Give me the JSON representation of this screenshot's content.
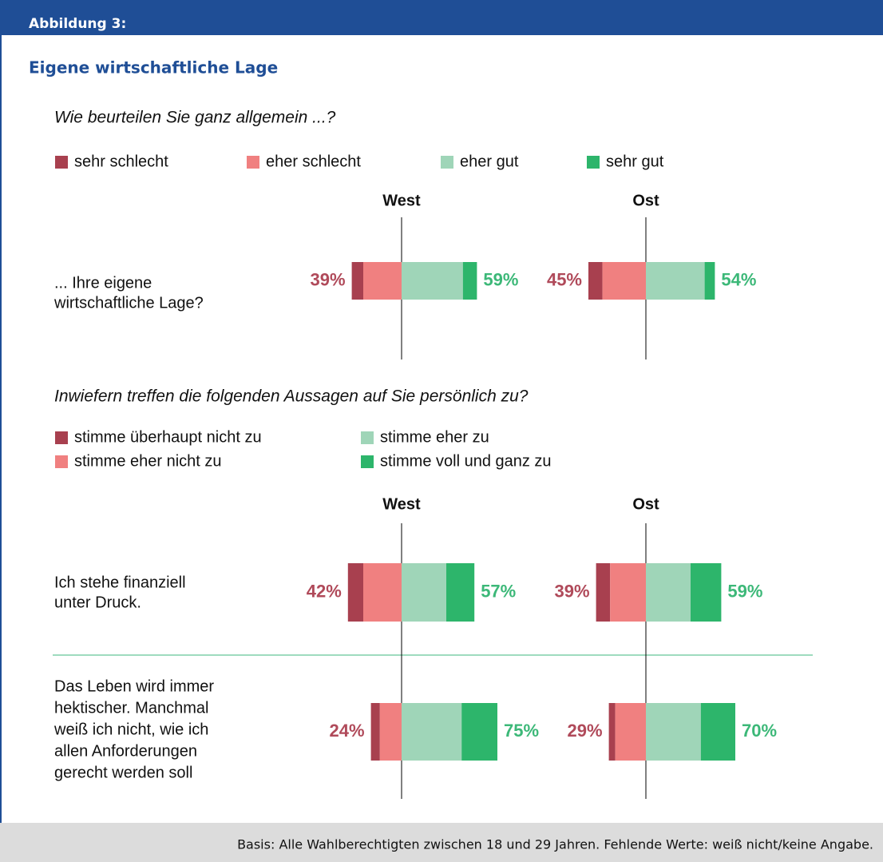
{
  "figure_label": "Abbildung 3:",
  "title": "Eigene wirtschaftliche Lage",
  "sections": [
    {
      "question": "Wie beurteilen Sie ganz allgemein ...?",
      "legend": [
        {
          "label": "sehr schlecht",
          "color": "#a8404f"
        },
        {
          "label": "eher schlecht",
          "color": "#f08080"
        },
        {
          "label": "eher gut",
          "color": "#9fd5b8"
        },
        {
          "label": "sehr gut",
          "color": "#2db56b"
        }
      ],
      "groups": [
        "West",
        "Ost"
      ],
      "rows": [
        {
          "label": [
            "... Ihre eigene",
            "wirtschaftliche Lage?"
          ],
          "bars": [
            {
              "segments": [
                9,
                30,
                48,
                11
              ],
              "neg_label": "39%",
              "pos_label": "59%"
            },
            {
              "segments": [
                11,
                34,
                46,
                8
              ],
              "neg_label": "45%",
              "pos_label": "54%"
            }
          ]
        }
      ]
    },
    {
      "question": "Inwiefern treffen die folgenden Aussagen auf Sie persönlich zu?",
      "legend": [
        {
          "label": "stimme überhaupt nicht zu",
          "color": "#a8404f"
        },
        {
          "label": "stimme eher nicht zu",
          "color": "#f08080"
        },
        {
          "label": "stimme eher zu",
          "color": "#9fd5b8"
        },
        {
          "label": "stimme voll und ganz zu",
          "color": "#2db56b"
        }
      ],
      "groups": [
        "West",
        "Ost"
      ],
      "rows": [
        {
          "label": [
            "Ich stehe finanziell",
            "unter Druck."
          ],
          "bars": [
            {
              "segments": [
                12,
                30,
                35,
                22
              ],
              "neg_label": "42%",
              "pos_label": "57%"
            },
            {
              "segments": [
                11,
                28,
                35,
                24
              ],
              "neg_label": "39%",
              "pos_label": "59%"
            }
          ]
        },
        {
          "label": [
            "Das Leben wird immer",
            "hektischer. Manchmal",
            "weiß ich nicht, wie ich",
            "allen Anforderungen",
            "gerecht werden soll"
          ],
          "bars": [
            {
              "segments": [
                7,
                17,
                47,
                28
              ],
              "neg_label": "24%",
              "pos_label": "75%"
            },
            {
              "segments": [
                5,
                24,
                43,
                27
              ],
              "neg_label": "29%",
              "pos_label": "70%"
            }
          ]
        }
      ]
    }
  ],
  "footnote": "Basis: Alle Wahlberechtigten zwischen 18 und 29 Jahren. Fehlende Werte: weiß nicht/keine Angabe."
}
